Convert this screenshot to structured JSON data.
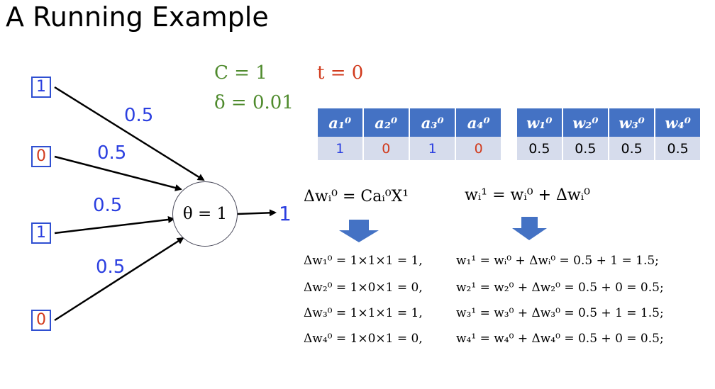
{
  "title": "A Running Example",
  "inputs": [
    {
      "value": "1",
      "color": "#2b3fe0"
    },
    {
      "value": "0",
      "color": "#d13a1c"
    },
    {
      "value": "1",
      "color": "#2b3fe0"
    },
    {
      "value": "0",
      "color": "#d13a1c"
    }
  ],
  "weights": [
    "0.5",
    "0.5",
    "0.5",
    "0.5"
  ],
  "neuron": {
    "label": "θ = 1",
    "output": "1"
  },
  "params": {
    "c": "C = 1",
    "delta": "δ = 0.01",
    "t": "t = 0"
  },
  "activation_table": {
    "headers": [
      "a₁⁰",
      "a₂⁰",
      "a₃⁰",
      "a₄⁰"
    ],
    "values": [
      "1",
      "0",
      "1",
      "0"
    ],
    "colors": [
      "#2b3fe0",
      "#d13a1c",
      "#2b3fe0",
      "#d13a1c"
    ]
  },
  "weight_table": {
    "headers": [
      "w₁⁰",
      "w₂⁰",
      "w₃⁰",
      "w₄⁰"
    ],
    "values": [
      "0.5",
      "0.5",
      "0.5",
      "0.5"
    ]
  },
  "formulas": {
    "delta_rule": "Δwᵢ⁰ = Caᵢ⁰X¹",
    "update_rule": "wᵢ¹ = wᵢ⁰ + Δwᵢ⁰"
  },
  "delta_results": [
    "Δw₁⁰ = 1×1×1 = 1,",
    "Δw₂⁰ = 1×0×1 = 0,",
    "Δw₃⁰ = 1×1×1 = 1,",
    "Δw₄⁰ = 1×0×1 = 0,"
  ],
  "update_results": [
    "w₁¹ = wᵢ⁰ + Δwᵢ⁰ = 0.5 + 1 = 1.5;",
    "w₂¹ = w₂⁰ + Δw₂⁰ = 0.5 + 0 = 0.5;",
    "w₃¹ = w₃⁰ + Δw₃⁰ = 0.5 + 1 = 1.5;",
    "w₄¹ = w₄⁰ + Δw₄⁰ = 0.5 + 0 = 0.5;"
  ],
  "colors": {
    "blue": "#2b3fe0",
    "red": "#d13a1c",
    "green": "#4e8a2c",
    "table_header": "#4472c4",
    "table_cell": "#d6dcec",
    "arrow": "#4472c4"
  }
}
